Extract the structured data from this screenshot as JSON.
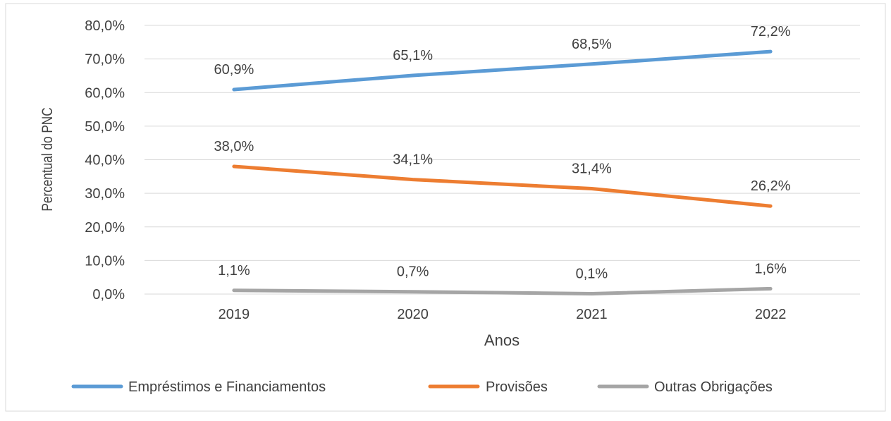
{
  "chart_data": {
    "type": "line",
    "title": "",
    "xlabel": "Anos",
    "ylabel": "Percentual do PNC",
    "ylim": [
      0,
      80
    ],
    "y_ticks": [
      "0,0%",
      "10,0%",
      "20,0%",
      "30,0%",
      "40,0%",
      "50,0%",
      "60,0%",
      "70,0%",
      "80,0%"
    ],
    "y_tick_values": [
      0,
      10,
      20,
      30,
      40,
      50,
      60,
      70,
      80
    ],
    "categories": [
      "2019",
      "2020",
      "2021",
      "2022"
    ],
    "grid": true,
    "legend_position": "bottom",
    "series": [
      {
        "name": "Empréstimos e Financiamentos",
        "color": "#5B9BD5",
        "values": [
          60.9,
          65.1,
          68.5,
          72.2
        ],
        "labels": [
          "60,9%",
          "65,1%",
          "68,5%",
          "72,2%"
        ]
      },
      {
        "name": "Provisões",
        "color": "#ED7D31",
        "values": [
          38.0,
          34.1,
          31.4,
          26.2
        ],
        "labels": [
          "38,0%",
          "34,1%",
          "31,4%",
          "26,2%"
        ]
      },
      {
        "name": "Outras Obrigações",
        "color": "#A5A5A5",
        "values": [
          1.1,
          0.7,
          0.1,
          1.6
        ],
        "labels": [
          "1,1%",
          "0,7%",
          "0,1%",
          "1,6%"
        ]
      }
    ]
  }
}
